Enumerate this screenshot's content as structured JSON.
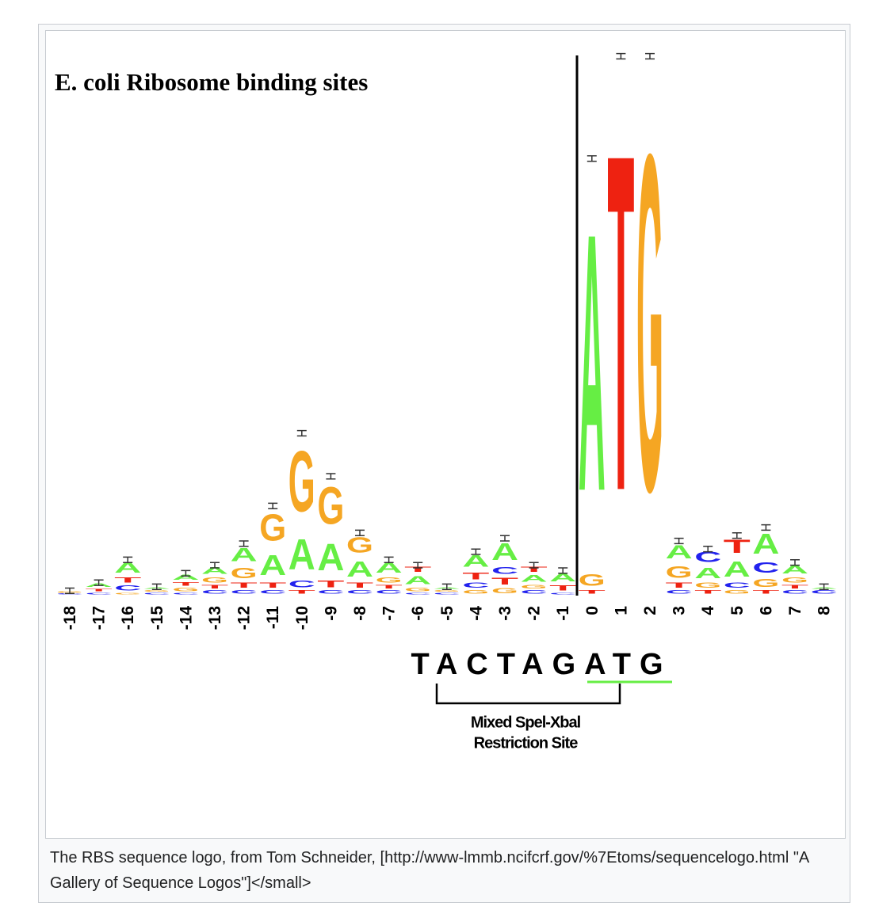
{
  "chart_data": {
    "type": "sequence_logo",
    "title": "E. coli Ribosome binding sites",
    "categories": [
      "-18",
      "-17",
      "-16",
      "-15",
      "-14",
      "-13",
      "-12",
      "-11",
      "-10",
      "-9",
      "-8",
      "-7",
      "-6",
      "-5",
      "-4",
      "-3",
      "-2",
      "-1",
      "0",
      "1",
      "2",
      "3",
      "4",
      "5",
      "6",
      "7",
      "8"
    ],
    "colors": {
      "A": "#66ee44",
      "C": "#2222ee",
      "G": "#f5a623",
      "T": "#ee2211"
    },
    "columns": [
      [
        {
          "letter": "C",
          "value": 0.005
        },
        {
          "letter": "G",
          "value": 0.01
        }
      ],
      [
        {
          "letter": "C",
          "value": 0.01
        },
        {
          "letter": "T",
          "value": 0.015
        },
        {
          "letter": "A",
          "value": 0.02
        }
      ],
      [
        {
          "letter": "G",
          "value": 0.01
        },
        {
          "letter": "C",
          "value": 0.03
        },
        {
          "letter": "T",
          "value": 0.03
        },
        {
          "letter": "A",
          "value": 0.06
        }
      ],
      [
        {
          "letter": "C",
          "value": 0.01
        },
        {
          "letter": "G",
          "value": 0.01
        },
        {
          "letter": "A",
          "value": 0.01
        }
      ],
      [
        {
          "letter": "C",
          "value": 0.01
        },
        {
          "letter": "G",
          "value": 0.02
        },
        {
          "letter": "T",
          "value": 0.02
        },
        {
          "letter": "A",
          "value": 0.03
        }
      ],
      [
        {
          "letter": "C",
          "value": 0.02
        },
        {
          "letter": "T",
          "value": 0.02
        },
        {
          "letter": "G",
          "value": 0.03
        },
        {
          "letter": "A",
          "value": 0.04
        }
      ],
      [
        {
          "letter": "C",
          "value": 0.02
        },
        {
          "letter": "T",
          "value": 0.03
        },
        {
          "letter": "G",
          "value": 0.06
        },
        {
          "letter": "A",
          "value": 0.08
        }
      ],
      [
        {
          "letter": "C",
          "value": 0.02
        },
        {
          "letter": "T",
          "value": 0.03
        },
        {
          "letter": "A",
          "value": 0.12
        },
        {
          "letter": "G",
          "value": 0.16
        }
      ],
      [
        {
          "letter": "T",
          "value": 0.02
        },
        {
          "letter": "C",
          "value": 0.04
        },
        {
          "letter": "A",
          "value": 0.18
        },
        {
          "letter": "G",
          "value": 0.36
        }
      ],
      [
        {
          "letter": "C",
          "value": 0.02
        },
        {
          "letter": "T",
          "value": 0.04
        },
        {
          "letter": "A",
          "value": 0.16
        },
        {
          "letter": "G",
          "value": 0.22
        }
      ],
      [
        {
          "letter": "C",
          "value": 0.02
        },
        {
          "letter": "T",
          "value": 0.03
        },
        {
          "letter": "A",
          "value": 0.09
        },
        {
          "letter": "G",
          "value": 0.09
        }
      ],
      [
        {
          "letter": "C",
          "value": 0.02
        },
        {
          "letter": "T",
          "value": 0.02
        },
        {
          "letter": "G",
          "value": 0.03
        },
        {
          "letter": "A",
          "value": 0.06
        }
      ],
      [
        {
          "letter": "C",
          "value": 0.01
        },
        {
          "letter": "G",
          "value": 0.02
        },
        {
          "letter": "A",
          "value": 0.05
        },
        {
          "letter": "T",
          "value": 0.03
        }
      ],
      [
        {
          "letter": "C",
          "value": 0.01
        },
        {
          "letter": "G",
          "value": 0.01
        },
        {
          "letter": "A",
          "value": 0.01
        }
      ],
      [
        {
          "letter": "G",
          "value": 0.02
        },
        {
          "letter": "C",
          "value": 0.03
        },
        {
          "letter": "T",
          "value": 0.04
        },
        {
          "letter": "A",
          "value": 0.07
        }
      ],
      [
        {
          "letter": "G",
          "value": 0.03
        },
        {
          "letter": "T",
          "value": 0.04
        },
        {
          "letter": "C",
          "value": 0.04
        },
        {
          "letter": "A",
          "value": 0.1
        }
      ],
      [
        {
          "letter": "C",
          "value": 0.02
        },
        {
          "letter": "G",
          "value": 0.02
        },
        {
          "letter": "A",
          "value": 0.04
        },
        {
          "letter": "T",
          "value": 0.03
        }
      ],
      [
        {
          "letter": "C",
          "value": 0.01
        },
        {
          "letter": "T",
          "value": 0.03
        },
        {
          "letter": "A",
          "value": 0.05
        }
      ],
      [
        {
          "letter": "T",
          "value": 0.02
        },
        {
          "letter": "G",
          "value": 0.07
        },
        {
          "letter": "A",
          "value": 1.53
        }
      ],
      [
        {
          "letter": "T",
          "value": 2.0
        }
      ],
      [
        {
          "letter": "G",
          "value": 2.0
        }
      ],
      [
        {
          "letter": "C",
          "value": 0.02
        },
        {
          "letter": "T",
          "value": 0.03
        },
        {
          "letter": "G",
          "value": 0.07
        },
        {
          "letter": "A",
          "value": 0.08
        }
      ],
      [
        {
          "letter": "T",
          "value": 0.02
        },
        {
          "letter": "G",
          "value": 0.03
        },
        {
          "letter": "A",
          "value": 0.06
        },
        {
          "letter": "C",
          "value": 0.06
        }
      ],
      [
        {
          "letter": "G",
          "value": 0.02
        },
        {
          "letter": "C",
          "value": 0.03
        },
        {
          "letter": "A",
          "value": 0.09
        },
        {
          "letter": "T",
          "value": 0.08
        }
      ],
      [
        {
          "letter": "T",
          "value": 0.02
        },
        {
          "letter": "G",
          "value": 0.05
        },
        {
          "letter": "C",
          "value": 0.06
        },
        {
          "letter": "A",
          "value": 0.12
        }
      ],
      [
        {
          "letter": "C",
          "value": 0.02
        },
        {
          "letter": "T",
          "value": 0.02
        },
        {
          "letter": "G",
          "value": 0.03
        },
        {
          "letter": "A",
          "value": 0.05
        }
      ],
      [
        {
          "letter": "C",
          "value": 0.02
        },
        {
          "letter": "A",
          "value": 0.01
        }
      ]
    ],
    "errors": [
      0.01,
      0.01,
      0.01,
      0.01,
      0.01,
      0.01,
      0.01,
      0.01,
      0.01,
      0.01,
      0.01,
      0.01,
      0.01,
      0.01,
      0.01,
      0.01,
      0.01,
      0.01,
      0.01,
      0.01,
      0.01,
      0.01,
      0.01,
      0.01,
      0.01,
      0.01,
      0.01
    ],
    "sequence": "TACTAGATG",
    "annotation": [
      "Mixed Spel-Xbal",
      "Restriction Site"
    ]
  },
  "caption": "The RBS sequence logo, from Tom Schneider, [http://www-lmmb.ncifcrf.gov/%7Etoms/sequencelogo.html \"A Gallery of Sequence Logos\"]</small>"
}
